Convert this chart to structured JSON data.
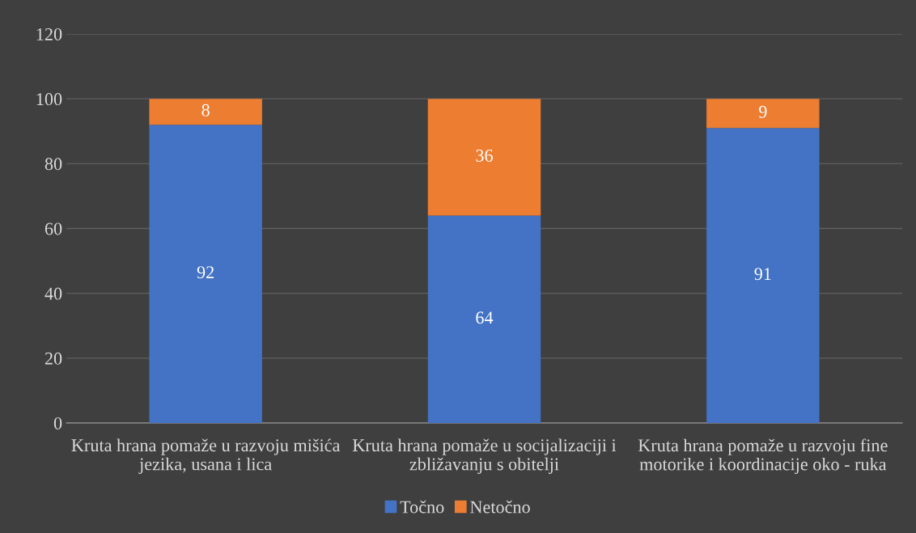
{
  "chart_data": {
    "type": "bar",
    "stacked": true,
    "categories": [
      "Kruta hrana pomaže u razvoju mišića jezika, usana i lica",
      "Kruta hrana pomaže u socijalizaciji i zbližavanju s obitelji",
      "Kruta hrana pomaže u razvoju fine motorike i koordinacije oko - ruka"
    ],
    "series": [
      {
        "name": "Točno",
        "color": "#4472c4",
        "values": [
          92,
          64,
          91
        ]
      },
      {
        "name": "Netočno",
        "color": "#ed7d31",
        "values": [
          8,
          36,
          9
        ]
      }
    ],
    "ylim": [
      0,
      120
    ],
    "yticks": [
      0,
      20,
      40,
      60,
      80,
      100,
      120
    ],
    "grid": "y",
    "legend": "bottom",
    "data_labels": true
  }
}
